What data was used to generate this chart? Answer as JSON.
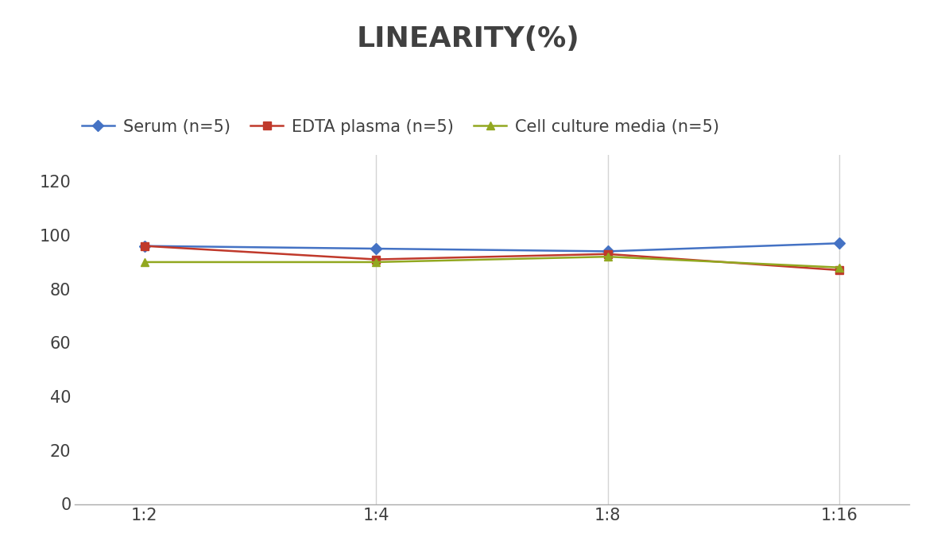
{
  "title": "LINEARITY(%)",
  "x_labels": [
    "1:2",
    "1:4",
    "1:8",
    "1:16"
  ],
  "x_positions": [
    0,
    1,
    2,
    3
  ],
  "series": [
    {
      "label": "Serum (n=5)",
      "values": [
        96,
        95,
        94,
        97
      ],
      "color": "#4472C4",
      "marker": "D",
      "marker_size": 7,
      "linewidth": 1.8
    },
    {
      "label": "EDTA plasma (n=5)",
      "values": [
        96,
        91,
        93,
        87
      ],
      "color": "#C0392B",
      "marker": "s",
      "marker_size": 7,
      "linewidth": 1.8
    },
    {
      "label": "Cell culture media (n=5)",
      "values": [
        90,
        90,
        92,
        88
      ],
      "color": "#92A820",
      "marker": "^",
      "marker_size": 7,
      "linewidth": 1.8
    }
  ],
  "ylim": [
    0,
    130
  ],
  "yticks": [
    0,
    20,
    40,
    60,
    80,
    100,
    120
  ],
  "title_fontsize": 26,
  "tick_fontsize": 15,
  "legend_fontsize": 15,
  "background_color": "#ffffff",
  "grid_color": "#d4d4d4",
  "title_color": "#404040"
}
